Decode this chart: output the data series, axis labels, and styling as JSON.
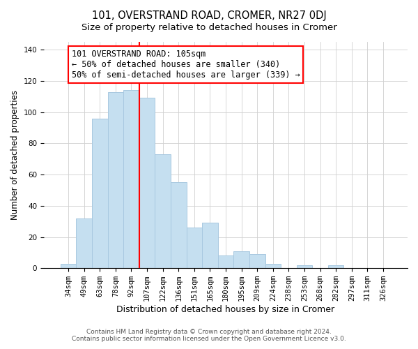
{
  "title": "101, OVERSTRAND ROAD, CROMER, NR27 0DJ",
  "subtitle": "Size of property relative to detached houses in Cromer",
  "xlabel": "Distribution of detached houses by size in Cromer",
  "ylabel": "Number of detached properties",
  "bar_labels": [
    "34sqm",
    "49sqm",
    "63sqm",
    "78sqm",
    "92sqm",
    "107sqm",
    "122sqm",
    "136sqm",
    "151sqm",
    "165sqm",
    "180sqm",
    "195sqm",
    "209sqm",
    "224sqm",
    "238sqm",
    "253sqm",
    "268sqm",
    "282sqm",
    "297sqm",
    "311sqm",
    "326sqm"
  ],
  "bar_values": [
    3,
    32,
    96,
    113,
    114,
    109,
    73,
    55,
    26,
    29,
    8,
    11,
    9,
    3,
    0,
    2,
    0,
    2,
    0,
    0,
    0
  ],
  "bar_color": "#c5dff0",
  "bar_edge_color": "#a8c8e0",
  "vline_x_index": 5,
  "vline_color": "red",
  "annotation_title": "101 OVERSTRAND ROAD: 105sqm",
  "annotation_line1": "← 50% of detached houses are smaller (340)",
  "annotation_line2": "50% of semi-detached houses are larger (339) →",
  "annotation_box_color": "white",
  "annotation_box_edge_color": "red",
  "ylim": [
    0,
    145
  ],
  "yticks": [
    0,
    20,
    40,
    60,
    80,
    100,
    120,
    140
  ],
  "footer_line1": "Contains HM Land Registry data © Crown copyright and database right 2024.",
  "footer_line2": "Contains public sector information licensed under the Open Government Licence v3.0.",
  "title_fontsize": 10.5,
  "subtitle_fontsize": 9.5,
  "xlabel_fontsize": 9,
  "ylabel_fontsize": 8.5,
  "tick_fontsize": 7.5,
  "footer_fontsize": 6.5,
  "annotation_fontsize": 8.5
}
